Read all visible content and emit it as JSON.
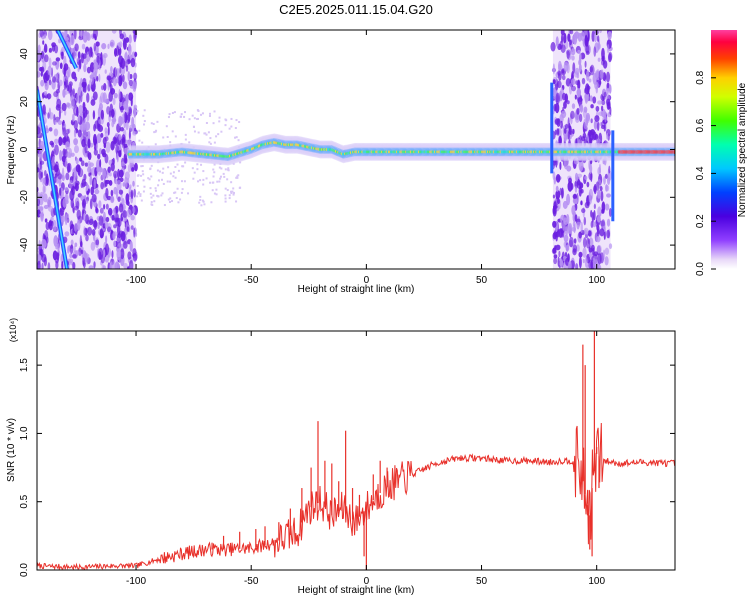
{
  "title": "C2E5.2025.011.15.04.G20",
  "colors": {
    "snr_line": "#e8302a",
    "axis": "#000000",
    "background": "#ffffff"
  },
  "chart_data": [
    {
      "type": "heatmap",
      "xlabel": "Height of straight line (km)",
      "ylabel": "Frequency (Hz)",
      "xlim": [
        -143,
        134
      ],
      "ylim": [
        -50,
        50
      ],
      "x_ticks": [
        -100,
        -50,
        0,
        50,
        100
      ],
      "y_ticks": [
        -40,
        -20,
        0,
        20,
        40
      ],
      "grid": false,
      "colorbar": {
        "label": "Normalized spectral amplitude",
        "range": [
          0,
          1
        ],
        "ticks": [
          "0.0",
          "0.2",
          "0.4",
          "0.6",
          "0.8"
        ],
        "colormap": "rainbow (purple → blue → cyan → green → yellow → red → pink)"
      },
      "features": {
        "carrier_track": {
          "x": [
            -103,
            -90,
            -80,
            -70,
            -60,
            -50,
            -45,
            -40,
            -35,
            -30,
            -25,
            -20,
            -15,
            -10,
            -5,
            0,
            20,
            40,
            60,
            78
          ],
          "y": [
            -2,
            -2,
            -1,
            -2,
            -3,
            0,
            2,
            3,
            2,
            2,
            1,
            0,
            0,
            -2,
            -1,
            -1,
            -1,
            -1,
            -1,
            -1
          ],
          "peak_amplitude_x_range": [
            110,
            134
          ]
        },
        "noise_bands_km": [
          [
            -143,
            -100
          ],
          [
            81,
            106
          ]
        ],
        "diagonal_streaks": [
          {
            "x": [
              -143,
              -130
            ],
            "y": [
              25,
              -50
            ]
          },
          {
            "x": [
              -134,
              -126
            ],
            "y": [
              50,
              34
            ]
          }
        ]
      }
    },
    {
      "type": "line",
      "xlabel": "Height of straight line (km)",
      "ylabel": "SNR (10 * v/v)",
      "y_multiplier": "(x10⁴)",
      "xlim": [
        -143,
        134
      ],
      "ylim": [
        0,
        1.75
      ],
      "x_ticks": [
        -100,
        -50,
        0,
        50,
        100
      ],
      "y_ticks": [
        "0.0",
        "0.5",
        "1.0",
        "1.5"
      ],
      "grid": false,
      "series": [
        {
          "x": [
            -143,
            -125,
            -110,
            -100,
            -90,
            -80,
            -70,
            -60,
            -50,
            -40,
            -30,
            -25,
            -20,
            -15,
            -10,
            -5,
            0,
            5,
            10,
            20,
            30,
            40,
            50,
            60,
            70,
            80,
            85,
            90,
            93,
            95,
            97,
            98,
            100,
            103,
            110,
            120,
            134
          ],
          "y": [
            0.03,
            0.02,
            0.03,
            0.03,
            0.08,
            0.12,
            0.15,
            0.15,
            0.16,
            0.2,
            0.28,
            0.45,
            0.5,
            0.4,
            0.45,
            0.35,
            0.45,
            0.55,
            0.62,
            0.7,
            0.78,
            0.82,
            0.82,
            0.8,
            0.8,
            0.79,
            0.8,
            0.8,
            0.75,
            0.55,
            0.4,
            0.6,
            0.85,
            0.8,
            0.78,
            0.79,
            0.78
          ]
        }
      ],
      "spikes": {
        "x": [
          -67,
          -62,
          -55,
          -48,
          -44,
          -38,
          -33,
          -28,
          -24,
          -21,
          -18,
          -15,
          -12,
          -9,
          -6,
          -3,
          -1,
          0,
          3,
          6,
          9,
          94,
          95,
          96,
          97,
          98,
          99,
          100,
          101
        ],
        "y": [
          0.2,
          0.25,
          0.28,
          0.3,
          0.32,
          0.35,
          0.45,
          0.6,
          0.75,
          1.09,
          0.8,
          0.78,
          0.65,
          1.02,
          0.6,
          0.55,
          0.1,
          0.0,
          0.7,
          0.8,
          0.75,
          1.65,
          1.5,
          0.4,
          0.15,
          0.1,
          1.76,
          0.9,
          0.6
        ]
      }
    }
  ]
}
